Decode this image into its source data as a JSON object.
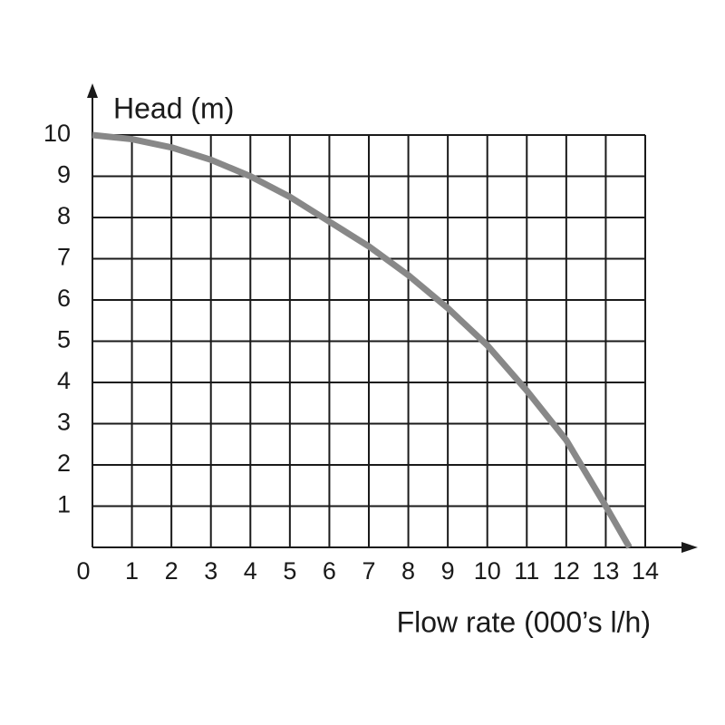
{
  "chart_data": {
    "type": "line",
    "y_label": "Head (m)",
    "x_label": "Flow rate (000’s l/h)",
    "x": [
      0,
      1,
      2,
      3,
      4,
      5,
      6,
      7,
      8,
      9,
      10,
      11,
      12,
      13,
      13.6
    ],
    "series": [
      {
        "color": "#888888",
        "values": [
          10,
          9.9,
          9.7,
          9.4,
          9,
          8.5,
          7.9,
          7.3,
          6.6,
          5.8,
          4.9,
          3.8,
          2.6,
          1.0,
          0
        ]
      }
    ],
    "xlim": [
      0,
      14
    ],
    "ylim": [
      0,
      10
    ],
    "xticks": [
      0,
      1,
      2,
      3,
      4,
      5,
      6,
      7,
      8,
      9,
      10,
      11,
      12,
      13,
      14
    ],
    "yticks": [
      1,
      2,
      3,
      4,
      5,
      6,
      7,
      8,
      9,
      10
    ],
    "grid": true
  }
}
